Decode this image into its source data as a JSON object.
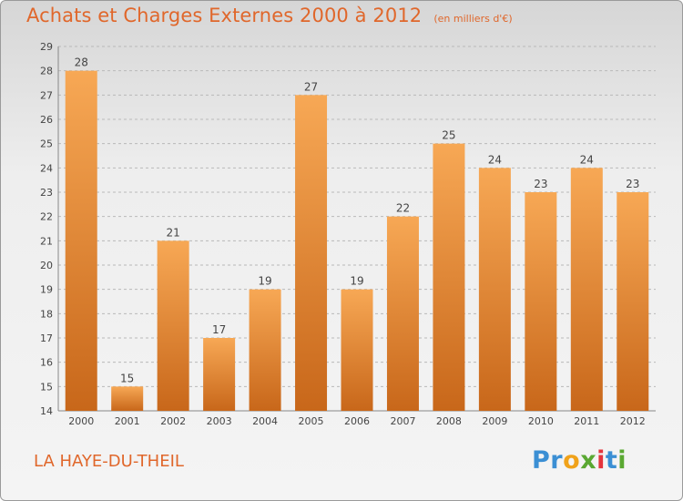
{
  "header": {
    "title": "Achats et Charges Externes 2000 à 2012",
    "subtitle": "(en milliers d'€)"
  },
  "footer": {
    "commune": "LA HAYE-DU-THEIL",
    "brand_letters": [
      {
        "char": "P",
        "color": "#3b8fd4"
      },
      {
        "char": "r",
        "color": "#3b8fd4"
      },
      {
        "char": "o",
        "color": "#f0a21a"
      },
      {
        "char": "x",
        "color": "#5aa832"
      },
      {
        "char": "i",
        "color": "#e4343c"
      },
      {
        "char": "t",
        "color": "#3b8fd4"
      },
      {
        "char": "i",
        "color": "#5aa832"
      }
    ]
  },
  "colors": {
    "accent": "#e0672b",
    "bar_top": "#f7a855",
    "bar_bottom": "#c8671a",
    "grid": "#b9b9b9"
  },
  "chart_data": {
    "type": "bar",
    "categories": [
      "2000",
      "2001",
      "2002",
      "2003",
      "2004",
      "2005",
      "2006",
      "2007",
      "2008",
      "2009",
      "2010",
      "2011",
      "2012"
    ],
    "values": [
      28,
      15,
      21,
      17,
      19,
      27,
      19,
      22,
      25,
      24,
      23,
      24,
      23
    ],
    "ylim": [
      14,
      29
    ],
    "yticks": [
      14,
      15,
      16,
      17,
      18,
      19,
      20,
      21,
      22,
      23,
      24,
      25,
      26,
      27,
      28,
      29
    ],
    "grid": "horizontal dashed",
    "legend": "none"
  }
}
